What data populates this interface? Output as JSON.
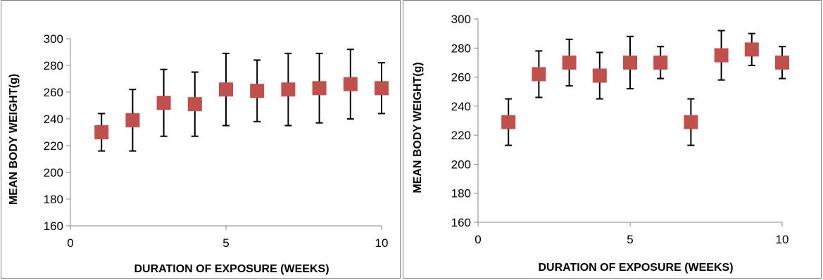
{
  "chart_data": [
    {
      "type": "scatter",
      "xlabel": "DURATION OF EXPOSURE (WEEKS)",
      "ylabel": "MEAN BODY WEIGHT(g)",
      "xlim": [
        0,
        10
      ],
      "ylim": [
        160,
        300
      ],
      "xticks": [
        0,
        5,
        10
      ],
      "yticks": [
        160,
        180,
        200,
        220,
        240,
        260,
        280,
        300
      ],
      "grid": false,
      "marker": "square",
      "marker_color": "#c0504d",
      "errorbar_color": "#000000",
      "x": [
        1,
        2,
        3,
        4,
        5,
        6,
        7,
        8,
        9,
        10
      ],
      "y": [
        230,
        239,
        252,
        251,
        262,
        261,
        262,
        263,
        266,
        263
      ],
      "error": [
        14,
        23,
        25,
        24,
        27,
        23,
        27,
        26,
        26,
        19
      ]
    },
    {
      "type": "scatter",
      "xlabel": "DURATION OF EXPOSURE (WEEKS)",
      "ylabel": "MEAN BODY WEIGHT(g)",
      "xlim": [
        0,
        10
      ],
      "ylim": [
        160,
        300
      ],
      "xticks": [
        0,
        5,
        10
      ],
      "yticks": [
        160,
        180,
        200,
        220,
        240,
        260,
        280,
        300
      ],
      "grid": false,
      "marker": "square",
      "marker_color": "#c0504d",
      "errorbar_color": "#000000",
      "x": [
        1,
        2,
        3,
        4,
        5,
        6,
        7,
        8,
        9,
        10
      ],
      "y": [
        229,
        262,
        270,
        261,
        270,
        270,
        229,
        275,
        279,
        270
      ],
      "error": [
        16,
        16,
        16,
        16,
        18,
        11,
        16,
        17,
        11,
        11
      ]
    }
  ]
}
